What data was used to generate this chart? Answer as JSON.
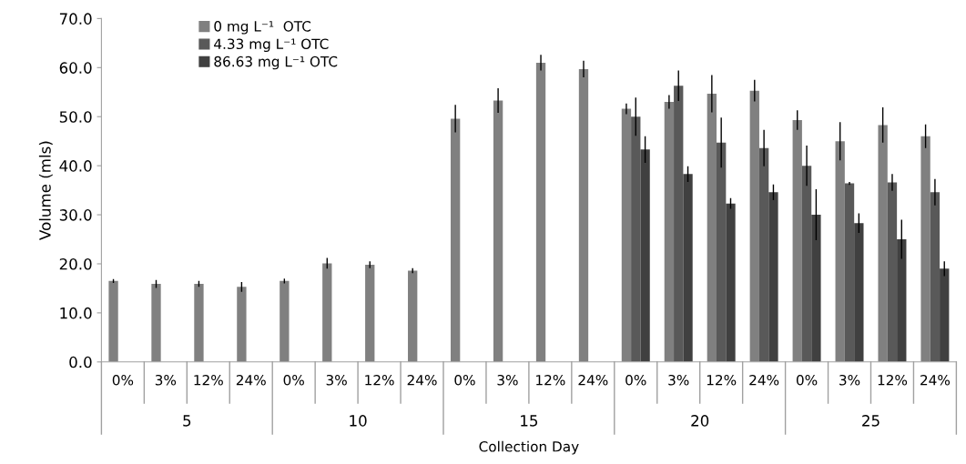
{
  "chart_data": {
    "type": "bar",
    "xlabel": "Collection Day",
    "ylabel": "Volume (mls)",
    "categories": [
      "0%",
      "3%",
      "12%",
      "24%",
      "0%",
      "3%",
      "12%",
      "24%",
      "0%",
      "3%",
      "12%",
      "24%",
      "0%",
      "3%",
      "12%",
      "24%",
      "0%",
      "3%",
      "12%",
      "24%"
    ],
    "annotations": [
      "5",
      "10",
      "15",
      "20",
      "25"
    ],
    "series": [
      {
        "name": "0 mg L⁻¹  OTC",
        "color": "#808080",
        "values": [
          16.5,
          15.9,
          15.9,
          15.3,
          16.5,
          20.1,
          19.8,
          18.6,
          49.6,
          53.3,
          61.0,
          59.7,
          51.6,
          53.0,
          54.7,
          55.3,
          49.3,
          45.0,
          48.3,
          46.0
        ],
        "errors": [
          0.4,
          0.8,
          0.6,
          1.0,
          0.5,
          1.1,
          0.7,
          0.5,
          2.8,
          2.5,
          1.6,
          1.7,
          1.1,
          1.4,
          3.8,
          2.2,
          2.0,
          3.9,
          3.6,
          2.4
        ]
      },
      {
        "name": "4.33 mg L⁻¹ OTC",
        "color": "#595959",
        "values": [
          null,
          null,
          null,
          null,
          null,
          null,
          null,
          null,
          null,
          null,
          null,
          null,
          50.0,
          56.3,
          44.7,
          43.6,
          40.0,
          36.4,
          36.6,
          34.6
        ],
        "errors": [
          null,
          null,
          null,
          null,
          null,
          null,
          null,
          null,
          null,
          null,
          null,
          null,
          3.9,
          3.1,
          5.1,
          3.7,
          4.1,
          0.3,
          1.7,
          2.7
        ]
      },
      {
        "name": "86.63 mg L⁻¹ OTC",
        "color": "#404040",
        "values": [
          null,
          null,
          null,
          null,
          null,
          null,
          null,
          null,
          null,
          null,
          null,
          null,
          43.3,
          38.3,
          32.3,
          34.6,
          30.0,
          28.3,
          25.0,
          19.0
        ],
        "errors": [
          null,
          null,
          null,
          null,
          null,
          null,
          null,
          null,
          null,
          null,
          null,
          null,
          2.7,
          1.6,
          1.1,
          1.6,
          5.2,
          2.0,
          4.0,
          1.5
        ]
      }
    ],
    "ylim": [
      0,
      70
    ],
    "yticks": [
      {
        "value": 0,
        "label": "0.0"
      },
      {
        "value": 10,
        "label": "10.0"
      },
      {
        "value": 20,
        "label": "20.0"
      },
      {
        "value": 30,
        "label": "30.0"
      },
      {
        "value": 40,
        "label": "40.0"
      },
      {
        "value": 50,
        "label": "50.0"
      },
      {
        "value": 60,
        "label": "60.0"
      },
      {
        "value": 70,
        "label": "70.0"
      }
    ],
    "grid": false,
    "legend": "top left"
  }
}
